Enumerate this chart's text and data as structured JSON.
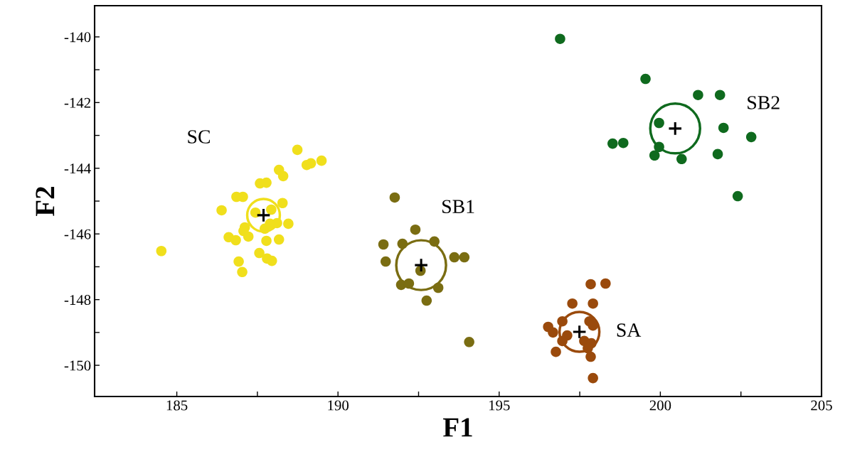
{
  "chart_data": {
    "type": "scatter",
    "xlabel": "F1",
    "ylabel": "F2",
    "xlim": [
      182.45,
      205
    ],
    "ylim": [
      -150.95,
      -139.05
    ],
    "xticks": [
      185,
      {
        "value": 187.5,
        "label": null
      },
      190,
      {
        "value": 192.5,
        "label": null
      },
      195,
      {
        "value": 197.5,
        "label": null
      },
      200,
      {
        "value": 202.5,
        "label": null
      },
      205
    ],
    "yticks": [
      {
        "value": -140,
        "label": "-140"
      },
      {
        "value": -141,
        "label": null
      },
      {
        "value": -142,
        "label": "-142"
      },
      {
        "value": -143,
        "label": null
      },
      {
        "value": -144,
        "label": "-144"
      },
      {
        "value": -145,
        "label": null
      },
      {
        "value": -146,
        "label": "-146"
      },
      {
        "value": -147,
        "label": null
      },
      {
        "value": -148,
        "label": "-148"
      },
      {
        "value": -149,
        "label": null
      },
      {
        "value": -150,
        "label": "-150"
      }
    ],
    "grid": false,
    "legend": false,
    "marker": "circle",
    "series": [
      {
        "name": "SC",
        "color": "#f0df1c",
        "x": [
          188.74,
          189.03,
          189.16,
          189.49,
          188.17,
          188.3,
          187.58,
          187.78,
          186.85,
          187.05,
          186.39,
          188.28,
          187.44,
          187.93,
          188.11,
          188.46,
          187.11,
          187.07,
          187.73,
          187.89,
          186.61,
          186.83,
          187.22,
          187.78,
          188.17,
          187.56,
          187.8,
          187.95,
          186.92,
          187.03,
          184.52
        ],
        "values": [
          -143.44,
          -143.9,
          -143.85,
          -143.77,
          -144.05,
          -144.24,
          -144.46,
          -144.44,
          -144.87,
          -144.87,
          -145.28,
          -145.06,
          -145.35,
          -145.26,
          -145.67,
          -145.69,
          -145.8,
          -145.91,
          -145.84,
          -145.69,
          -146.1,
          -146.19,
          -146.08,
          -146.21,
          -146.17,
          -146.58,
          -146.75,
          -146.82,
          -146.84,
          -147.16,
          -146.52
        ]
      },
      {
        "name": "SB1",
        "color": "#7a6d12",
        "x": [
          191.76,
          192.4,
          191.41,
          192.0,
          192.99,
          191.48,
          193.61,
          193.92,
          192.56,
          191.96,
          192.2,
          193.11,
          192.75,
          194.07
        ],
        "values": [
          -144.89,
          -145.87,
          -146.32,
          -146.3,
          -146.23,
          -146.84,
          -146.71,
          -146.71,
          -147.12,
          -147.55,
          -147.51,
          -147.64,
          -148.03,
          -149.29
        ]
      },
      {
        "name": "SA",
        "color": "#9a4a0c",
        "x": [
          197.84,
          198.3,
          197.27,
          197.91,
          196.96,
          197.8,
          197.91,
          196.52,
          196.67,
          197.11,
          196.96,
          197.64,
          197.86,
          197.75,
          197.84,
          196.76,
          197.91
        ],
        "values": [
          -147.53,
          -147.51,
          -148.12,
          -148.12,
          -148.66,
          -148.66,
          -148.79,
          -148.83,
          -149.0,
          -149.09,
          -149.26,
          -149.26,
          -149.33,
          -149.48,
          -149.74,
          -149.59,
          -150.39
        ]
      },
      {
        "name": "SB2",
        "color": "#0f6a1e",
        "x": [
          196.89,
          199.54,
          201.17,
          201.85,
          199.96,
          201.96,
          202.82,
          198.52,
          198.85,
          199.96,
          199.82,
          200.66,
          201.78,
          202.4
        ],
        "values": [
          -140.06,
          -141.28,
          -141.77,
          -141.77,
          -142.62,
          -142.77,
          -143.05,
          -143.25,
          -143.23,
          -143.35,
          -143.61,
          -143.72,
          -143.57,
          -144.85
        ]
      },
      {
        "type": "bubble",
        "marker": "circle",
        "colors": [
          "#f0df1c",
          "#7a6d12",
          "#9a4a0c",
          "#0f6a1e"
        ],
        "x": [
          187.69,
          192.58,
          197.49,
          200.46
        ],
        "values": [
          -145.43,
          -146.95,
          -148.98,
          -142.79
        ],
        "sizes": [
          0.43,
          1,
          0.64,
          1
        ]
      },
      {
        "color": "#000000",
        "marker": "cross",
        "x": [
          187.69,
          192.58,
          197.49,
          200.46
        ],
        "values": [
          -145.43,
          -146.95,
          -148.98,
          -142.79
        ]
      }
    ]
  }
}
